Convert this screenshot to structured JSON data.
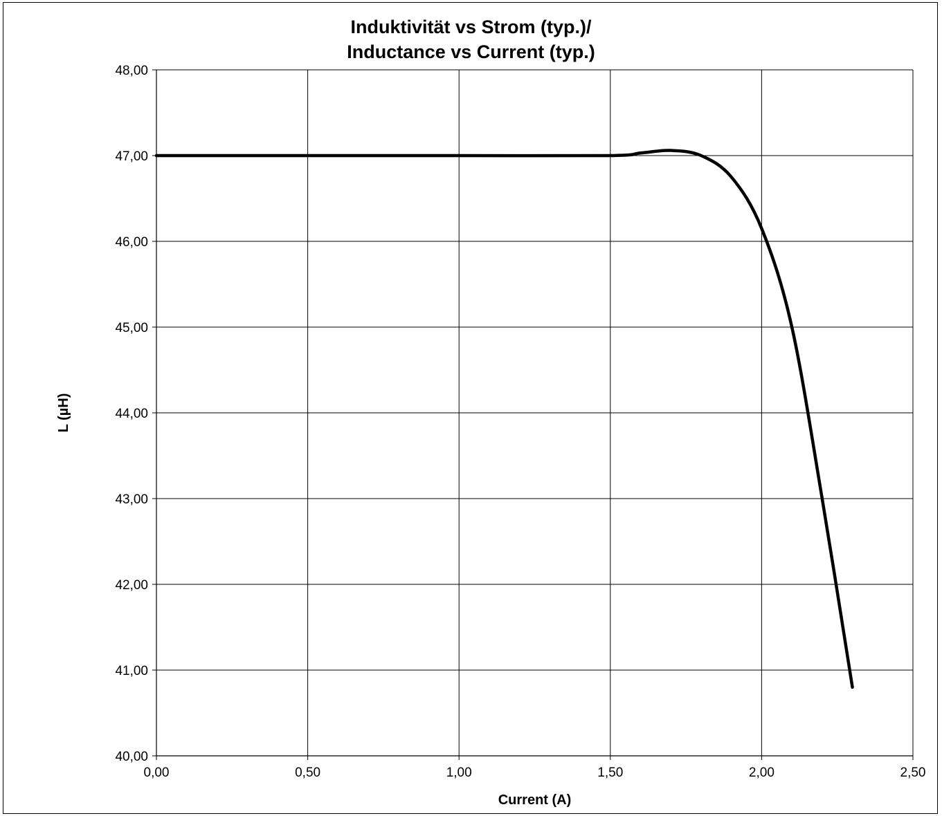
{
  "chart_data": {
    "type": "line",
    "title": "Induktivität vs Strom (typ.)/",
    "subtitle": "Inductance vs Current (typ.)",
    "xlabel": "Current (A)",
    "ylabel": "L (µH)",
    "xlim": [
      0,
      2.5
    ],
    "ylim": [
      40,
      48
    ],
    "grid": true,
    "x_ticks": [
      0,
      0.5,
      1.0,
      1.5,
      2.0,
      2.5
    ],
    "x_tick_labels": [
      "0,00",
      "0,50",
      "1,00",
      "1,50",
      "2,00",
      "2,50"
    ],
    "y_ticks": [
      40,
      41,
      42,
      43,
      44,
      45,
      46,
      47,
      48
    ],
    "y_tick_labels": [
      "40,00",
      "41,00",
      "42,00",
      "43,00",
      "44,00",
      "45,00",
      "46,00",
      "47,00",
      "48,00"
    ],
    "line_color": "#000000",
    "series": [
      {
        "x": [
          0,
          0.5,
          1.0,
          1.5,
          1.6,
          1.7,
          1.8,
          1.9,
          2.0,
          2.1,
          2.2,
          2.3
        ],
        "y": [
          47.0,
          47.0,
          47.0,
          47.0,
          47.03,
          47.06,
          47.0,
          46.75,
          46.15,
          45.0,
          43.0,
          40.8
        ]
      }
    ]
  }
}
